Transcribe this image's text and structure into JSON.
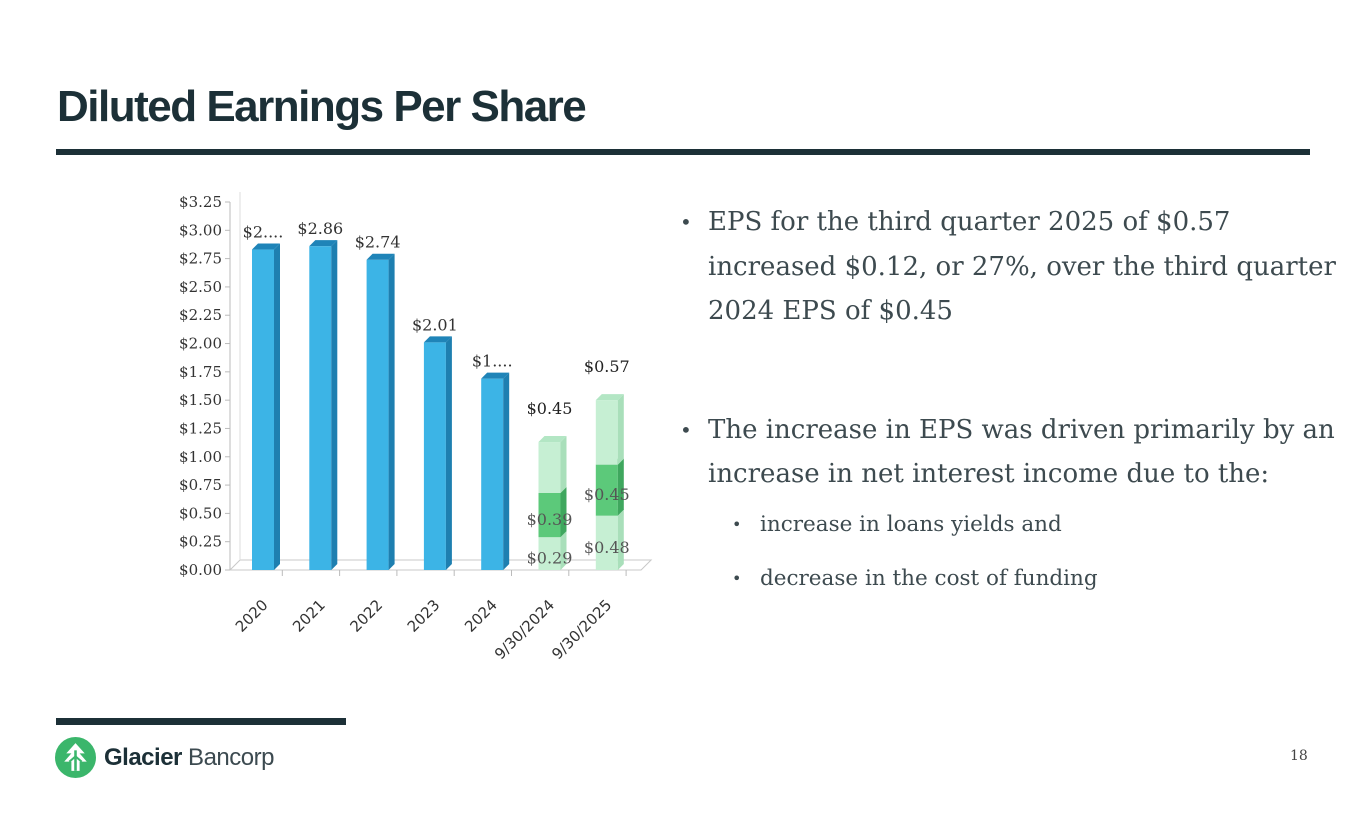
{
  "slide": {
    "title": "Diluted Earnings Per Share",
    "page_number": "18"
  },
  "bullets": [
    "EPS for the third quarter 2025 of $0.57 increased $0.12, or 27%, over the third quarter 2024 EPS of $0.45",
    "The increase in EPS was driven primarily by an increase in net interest income due to the:"
  ],
  "sub_bullets": [
    "increase in loans yields and",
    "decrease in the cost of funding"
  ],
  "logo": {
    "name_bold": "Glacier",
    "name_rest": " Bancorp"
  },
  "colors": {
    "title": "#1c3037",
    "annual_bar": "#3cb4e6",
    "annual_bar_side": "#1e7fb0",
    "annual_bar_top": "#1f84b8",
    "quarter_dark": "#5cc97a",
    "quarter_light": "#c6efd3"
  },
  "chart_data": {
    "type": "bar",
    "title": "",
    "xlabel": "",
    "ylabel": "",
    "ylim": [
      0,
      3.25
    ],
    "y_ticks": [
      "$0.00",
      "$0.25",
      "$0.50",
      "$0.75",
      "$1.00",
      "$1.25",
      "$1.50",
      "$1.75",
      "$2.00",
      "$2.25",
      "$2.50",
      "$2.75",
      "$3.00",
      "$3.25"
    ],
    "categories": [
      "2020",
      "2021",
      "2022",
      "2023",
      "2024",
      "9/30/2024",
      "9/30/2025"
    ],
    "annual": {
      "values": [
        2.83,
        2.86,
        2.74,
        2.01,
        1.69
      ],
      "labels": [
        "$2....",
        "$2.86",
        "$2.74",
        "$2.01",
        "$1...."
      ]
    },
    "quarterly_stack": [
      {
        "category": "9/30/2024",
        "segments": [
          {
            "value": 0.29,
            "label": "$0.29",
            "shade": "light"
          },
          {
            "value": 0.39,
            "label": "$0.39",
            "shade": "dark"
          },
          {
            "value": 0.45,
            "label": "$0.45",
            "shade": "light"
          }
        ]
      },
      {
        "category": "9/30/2025",
        "segments": [
          {
            "value": 0.48,
            "label": "$0.48",
            "shade": "light"
          },
          {
            "value": 0.45,
            "label": "$0.45",
            "shade": "dark"
          },
          {
            "value": 0.57,
            "label": "$0.57",
            "shade": "light"
          }
        ]
      }
    ]
  }
}
